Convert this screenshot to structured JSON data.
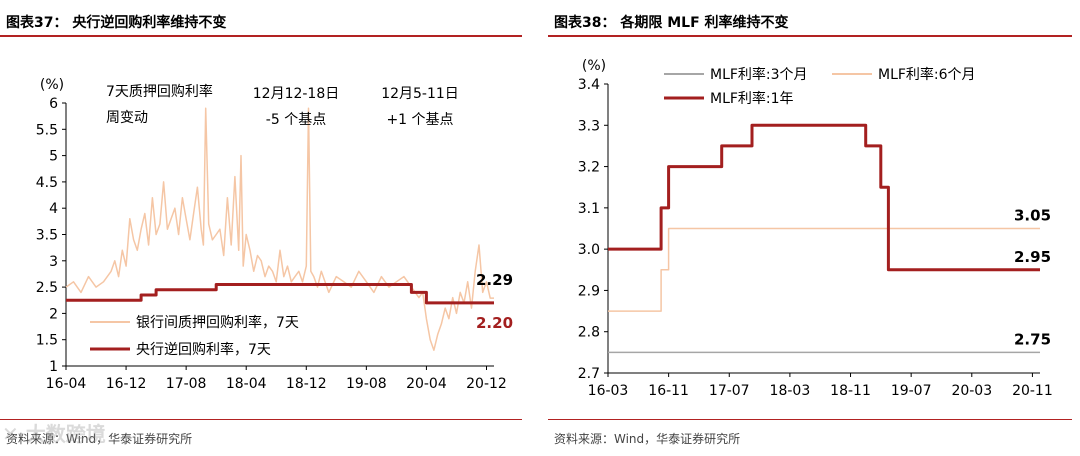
{
  "left": {
    "title": "图表37：  央行逆回购利率维持不变",
    "source": "资料来源：Wind，华泰证券研究所",
    "watermark": "大数跨境",
    "unit": "(%)",
    "annotations": [
      {
        "lines": [
          "7天质押回购利率",
          "周变动"
        ]
      },
      {
        "lines": [
          "12月12-18日",
          "-5  个基点"
        ]
      },
      {
        "lines": [
          "12月5-11日",
          "+1  个基点"
        ]
      }
    ],
    "end_labels": [
      "2.29",
      "2.20"
    ],
    "legend": [
      "银行间质押回购利率，7天",
      "央行逆回购利率，7天"
    ],
    "chart_data": {
      "type": "line",
      "xlabel": "",
      "ylabel": "(%)",
      "ylim": [
        1,
        6
      ],
      "yticks": [
        "1",
        "1.5",
        "2",
        "2.5",
        "3",
        "3.5",
        "4",
        "4.5",
        "5",
        "5.5",
        "6"
      ],
      "xticks": [
        "16-04",
        "16-12",
        "17-08",
        "18-04",
        "18-12",
        "19-08",
        "20-04",
        "20-12"
      ],
      "xtick_months": [
        0,
        8,
        16,
        24,
        32,
        40,
        48,
        56
      ],
      "xlim_months": [
        0,
        57
      ],
      "series": [
        {
          "name": "银行间质押回购利率，7天",
          "color": "#f5c6a5",
          "x_months": [
            0,
            1,
            2,
            3,
            4,
            5,
            6,
            6.5,
            7,
            7.5,
            8,
            8.5,
            9,
            9.5,
            10,
            10.5,
            11,
            11.5,
            12,
            12.5,
            13,
            13.5,
            14,
            14.5,
            15,
            15.5,
            16,
            16.5,
            17,
            17.5,
            18,
            18.3,
            18.6,
            19,
            19.5,
            20,
            20.5,
            21,
            21.5,
            22,
            22.5,
            23,
            23.3,
            23.6,
            24,
            24.5,
            25,
            25.5,
            26,
            26.5,
            27,
            27.5,
            28,
            28.5,
            29,
            29.5,
            30,
            30.5,
            31,
            31.5,
            32,
            32.3,
            32.6,
            33,
            33.5,
            34,
            35,
            36,
            37,
            38,
            39,
            40,
            41,
            42,
            43,
            44,
            45,
            46,
            47,
            47.5,
            48,
            48.5,
            49,
            49.5,
            50,
            50.5,
            51,
            51.5,
            52,
            52.5,
            53,
            53.5,
            54,
            54.5,
            55,
            55.5,
            56,
            56.5,
            57
          ],
          "values": [
            2.5,
            2.6,
            2.4,
            2.7,
            2.5,
            2.6,
            2.8,
            3.0,
            2.7,
            3.2,
            2.9,
            3.8,
            3.4,
            3.2,
            3.6,
            3.9,
            3.3,
            4.2,
            3.5,
            3.7,
            4.5,
            3.6,
            3.8,
            4.0,
            3.5,
            4.2,
            3.8,
            3.4,
            3.9,
            4.4,
            3.6,
            3.3,
            5.9,
            3.7,
            3.4,
            3.5,
            3.6,
            3.1,
            4.2,
            3.3,
            4.6,
            3.2,
            5.0,
            2.9,
            3.5,
            3.2,
            2.8,
            3.1,
            3.0,
            2.7,
            2.9,
            2.8,
            2.6,
            3.2,
            2.7,
            2.9,
            2.6,
            2.7,
            2.8,
            2.6,
            2.9,
            5.9,
            2.8,
            2.7,
            2.5,
            2.8,
            2.4,
            2.7,
            2.6,
            2.5,
            2.8,
            2.6,
            2.4,
            2.7,
            2.5,
            2.6,
            2.7,
            2.5,
            2.3,
            2.4,
            1.9,
            1.5,
            1.3,
            1.6,
            1.8,
            2.1,
            1.9,
            2.3,
            2.0,
            2.4,
            2.2,
            2.6,
            2.1,
            2.8,
            3.3,
            2.4,
            2.6,
            2.29,
            2.29
          ]
        },
        {
          "name": "央行逆回购利率，7天",
          "color": "#a31f1f",
          "x_months": [
            0,
            10,
            10,
            12,
            12,
            20,
            20,
            35,
            35,
            46,
            46,
            48,
            48,
            57
          ],
          "values": [
            2.25,
            2.25,
            2.35,
            2.35,
            2.45,
            2.45,
            2.55,
            2.55,
            2.55,
            2.55,
            2.4,
            2.4,
            2.2,
            2.2
          ]
        }
      ]
    }
  },
  "right": {
    "title": "图表38：  各期限 MLF 利率维持不变",
    "source": "资料来源：Wind，华泰证券研究所",
    "unit": "(%)",
    "end_labels": [
      "3.05",
      "2.95",
      "2.75"
    ],
    "legend": [
      "MLF利率:3个月",
      "MLF利率:6个月",
      "MLF利率:1年"
    ],
    "chart_data": {
      "type": "line",
      "xlabel": "",
      "ylabel": "(%)",
      "ylim": [
        2.7,
        3.4
      ],
      "yticks": [
        "2.7",
        "2.8",
        "2.9",
        "3.0",
        "3.1",
        "3.2",
        "3.3",
        "3.4"
      ],
      "xticks": [
        "16-03",
        "16-11",
        "17-07",
        "18-03",
        "18-11",
        "19-07",
        "20-03",
        "20-11"
      ],
      "xtick_months": [
        0,
        8,
        16,
        24,
        32,
        40,
        48,
        56
      ],
      "xlim_months": [
        0,
        57
      ],
      "series": [
        {
          "name": "MLF利率:3个月",
          "color": "#a6a6a6",
          "x_months": [
            0,
            57
          ],
          "values": [
            2.75,
            2.75
          ]
        },
        {
          "name": "MLF利率:6个月",
          "color": "#f5c6a5",
          "x_months": [
            0,
            7,
            7,
            8,
            8,
            57
          ],
          "values": [
            2.85,
            2.85,
            2.95,
            2.95,
            3.05,
            3.05
          ]
        },
        {
          "name": "MLF利率:1年",
          "color": "#a31f1f",
          "x_months": [
            0,
            7,
            7,
            8,
            8,
            15,
            15,
            17,
            17,
            19,
            19,
            34,
            34,
            36,
            36,
            37,
            37,
            57
          ],
          "values": [
            3.0,
            3.0,
            3.1,
            3.1,
            3.2,
            3.2,
            3.25,
            3.25,
            3.25,
            3.25,
            3.3,
            3.3,
            3.25,
            3.25,
            3.15,
            3.15,
            2.95,
            2.95
          ]
        }
      ]
    }
  }
}
